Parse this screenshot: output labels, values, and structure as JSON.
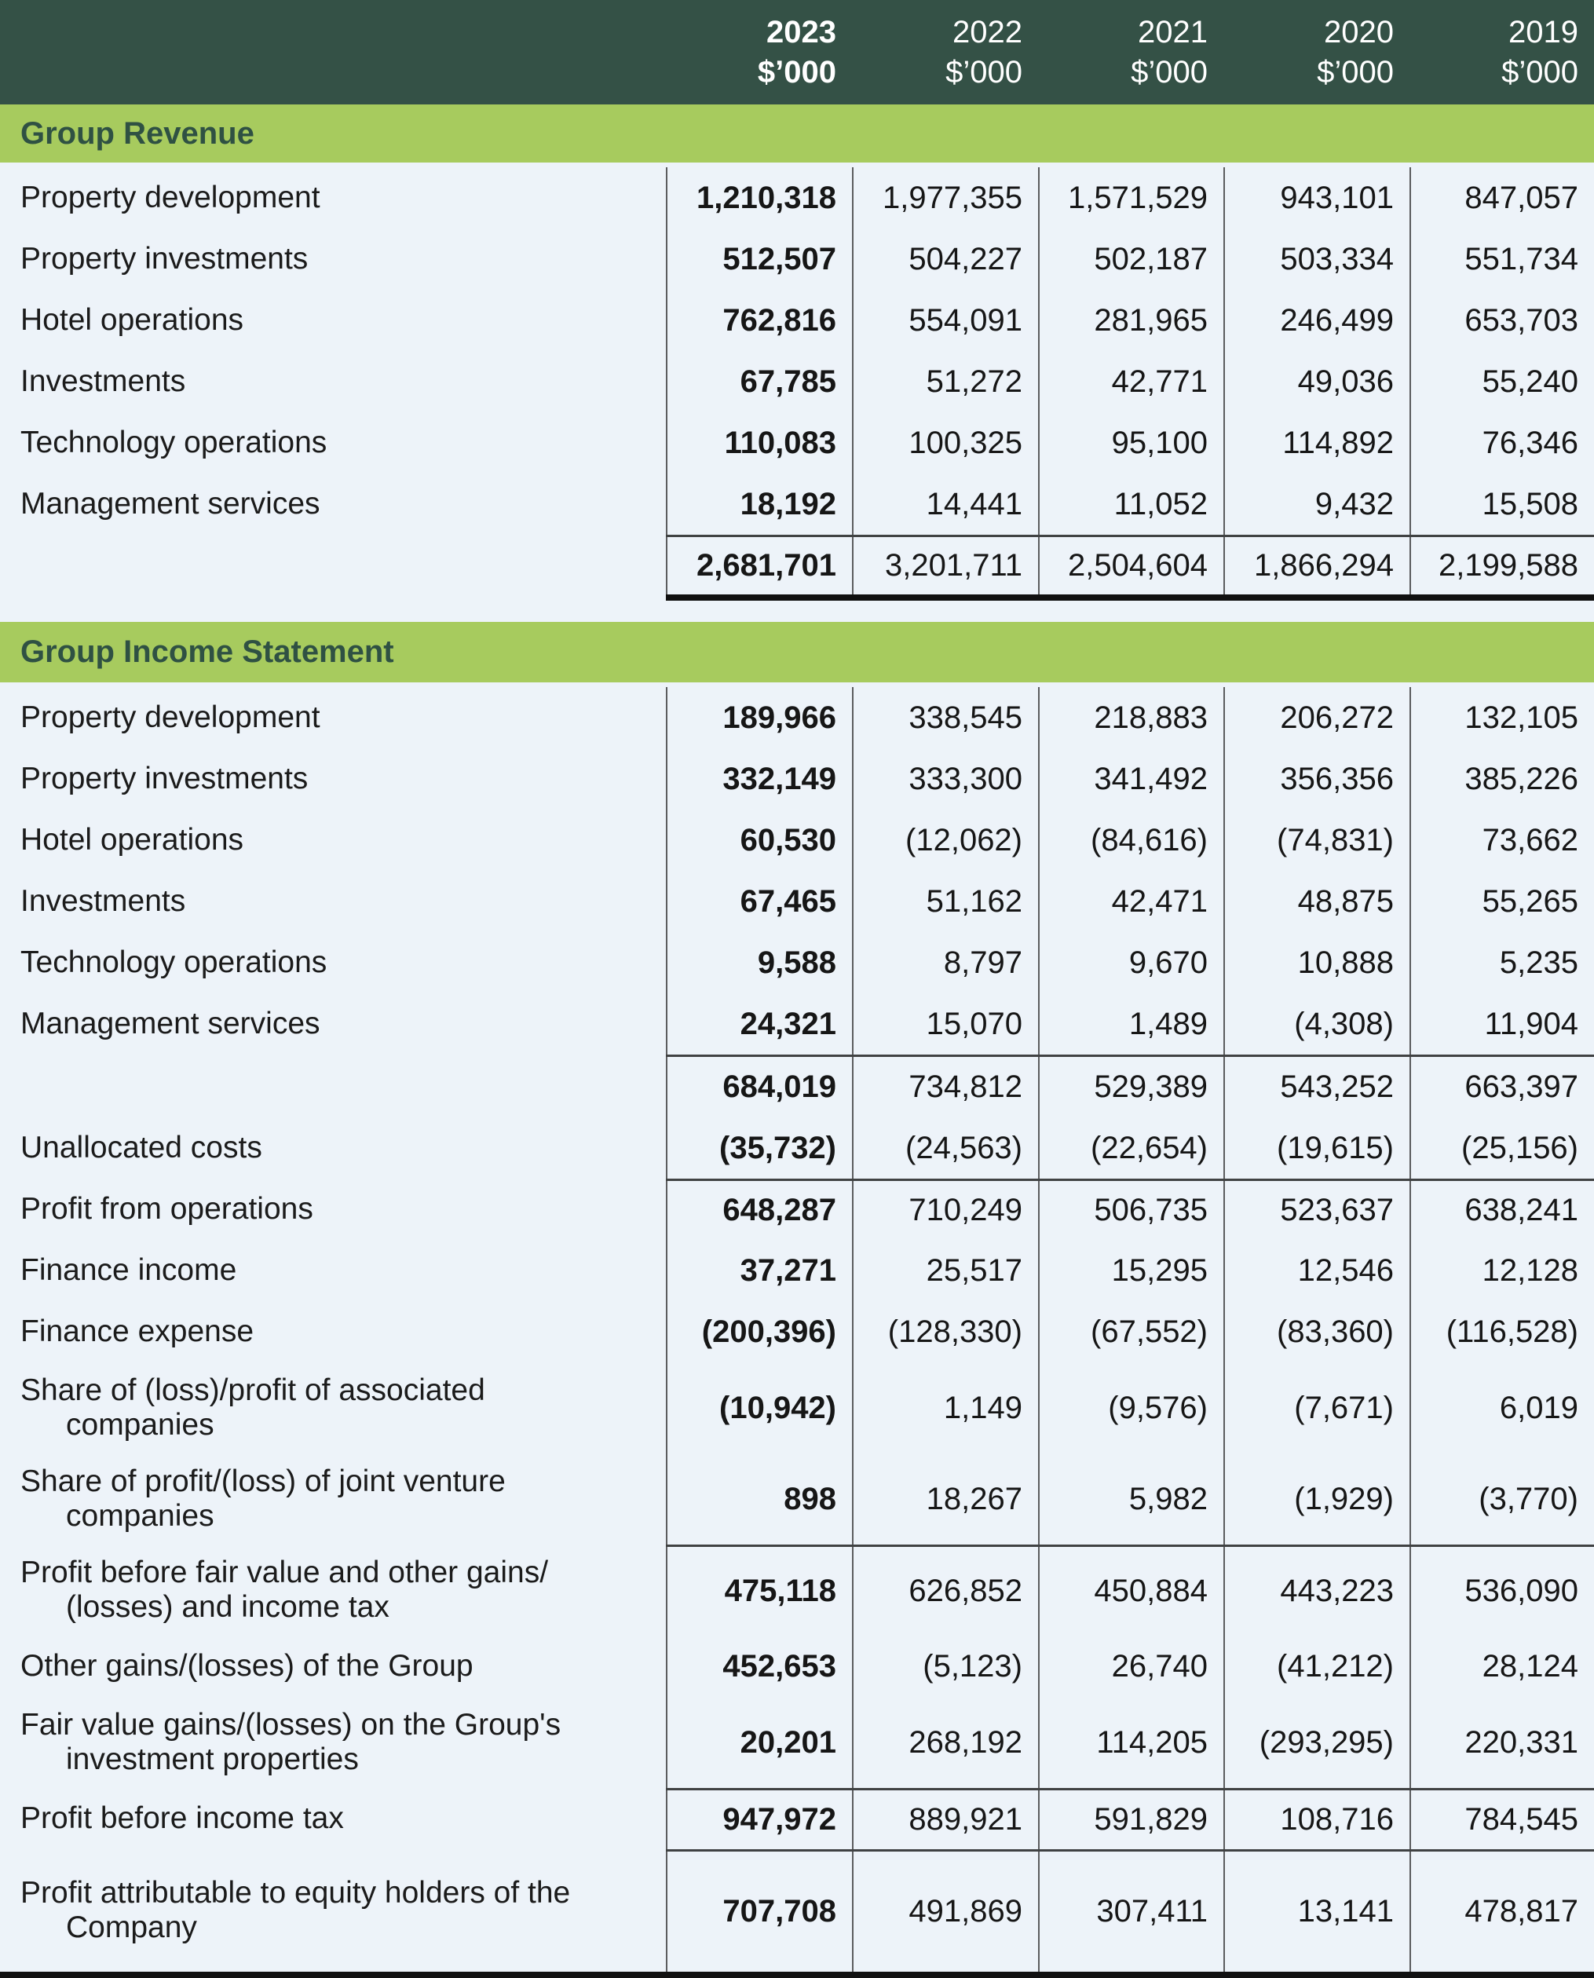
{
  "columns": [
    {
      "year": "2023",
      "unit": "$’000",
      "bold": true
    },
    {
      "year": "2022",
      "unit": "$’000",
      "bold": false
    },
    {
      "year": "2021",
      "unit": "$’000",
      "bold": false
    },
    {
      "year": "2020",
      "unit": "$’000",
      "bold": false
    },
    {
      "year": "2019",
      "unit": "$’000",
      "bold": false
    }
  ],
  "sections": [
    {
      "title": "Group Revenue",
      "rows": [
        {
          "label": "Property development",
          "values": [
            "1,210,318",
            "1,977,355",
            "1,571,529",
            "943,101",
            "847,057"
          ]
        },
        {
          "label": "Property investments",
          "values": [
            "512,507",
            "504,227",
            "502,187",
            "503,334",
            "551,734"
          ]
        },
        {
          "label": "Hotel operations",
          "values": [
            "762,816",
            "554,091",
            "281,965",
            "246,499",
            "653,703"
          ]
        },
        {
          "label": "Investments",
          "values": [
            "67,785",
            "51,272",
            "42,771",
            "49,036",
            "55,240"
          ]
        },
        {
          "label": "Technology operations",
          "values": [
            "110,083",
            "100,325",
            "95,100",
            "114,892",
            "76,346"
          ]
        },
        {
          "label": "Management services",
          "values": [
            "18,192",
            "14,441",
            "11,052",
            "9,432",
            "15,508"
          ]
        },
        {
          "label": "",
          "values": [
            "2,681,701",
            "3,201,711",
            "2,504,604",
            "1,866,294",
            "2,199,588"
          ],
          "rule_above": true,
          "strong_rule_below": true,
          "is_total": true
        }
      ]
    },
    {
      "title": "Group Income Statement",
      "rows": [
        {
          "label": "Property development",
          "values": [
            "189,966",
            "338,545",
            "218,883",
            "206,272",
            "132,105"
          ]
        },
        {
          "label": "Property investments",
          "values": [
            "332,149",
            "333,300",
            "341,492",
            "356,356",
            "385,226"
          ]
        },
        {
          "label": "Hotel operations",
          "values": [
            "60,530",
            "(12,062)",
            "(84,616)",
            "(74,831)",
            "73,662"
          ]
        },
        {
          "label": "Investments",
          "values": [
            "67,465",
            "51,162",
            "42,471",
            "48,875",
            "55,265"
          ]
        },
        {
          "label": "Technology operations",
          "values": [
            "9,588",
            "8,797",
            "9,670",
            "10,888",
            "5,235"
          ]
        },
        {
          "label": "Management services",
          "values": [
            "24,321",
            "15,070",
            "1,489",
            "(4,308)",
            "11,904"
          ]
        },
        {
          "label": "",
          "values": [
            "684,019",
            "734,812",
            "529,389",
            "543,252",
            "663,397"
          ],
          "rule_above": true,
          "is_total": true
        },
        {
          "label": "Unallocated costs",
          "values": [
            "(35,732)",
            "(24,563)",
            "(22,654)",
            "(19,615)",
            "(25,156)"
          ]
        },
        {
          "label": "Profit from operations",
          "values": [
            "648,287",
            "710,249",
            "506,735",
            "523,637",
            "638,241"
          ],
          "rule_above": true
        },
        {
          "label": "Finance income",
          "values": [
            "37,271",
            "25,517",
            "15,295",
            "12,546",
            "12,128"
          ]
        },
        {
          "label": "Finance expense",
          "values": [
            "(200,396)",
            "(128,330)",
            "(67,552)",
            "(83,360)",
            "(116,528)"
          ]
        },
        {
          "label": "Share of (loss)/profit of associated\ncompanies",
          "values": [
            "(10,942)",
            "1,149",
            "(9,576)",
            "(7,671)",
            "6,019"
          ]
        },
        {
          "label": "Share of profit/(loss) of joint venture\ncompanies",
          "values": [
            "898",
            "18,267",
            "5,982",
            "(1,929)",
            "(3,770)"
          ]
        },
        {
          "label": "Profit before fair value and other gains/\n(losses) and income tax",
          "values": [
            "475,118",
            "626,852",
            "450,884",
            "443,223",
            "536,090"
          ],
          "rule_above": true
        },
        {
          "label": "Other gains/(losses) of the Group",
          "values": [
            "452,653",
            "(5,123)",
            "26,740",
            "(41,212)",
            "28,124"
          ]
        },
        {
          "label": "Fair value gains/(losses) on the Group's\ninvestment properties",
          "values": [
            "20,201",
            "268,192",
            "114,205",
            "(293,295)",
            "220,331"
          ]
        },
        {
          "label": "Profit before income tax",
          "values": [
            "947,972",
            "889,921",
            "591,829",
            "108,716",
            "784,545"
          ],
          "rule_above": true
        },
        {
          "label": "Profit attributable to equity holders of the\nCompany",
          "values": [
            "707,708",
            "491,869",
            "307,411",
            "13,141",
            "478,817"
          ],
          "rule_above": true
        }
      ]
    }
  ],
  "colors": {
    "header_bg": "#345146",
    "band_bg": "#a7cb5e",
    "band_text": "#2f5143",
    "page_bg": "#edf3f9",
    "grid_line": "#5b5c5e",
    "rule_line": "#404243",
    "strong_rule": "#111111"
  }
}
